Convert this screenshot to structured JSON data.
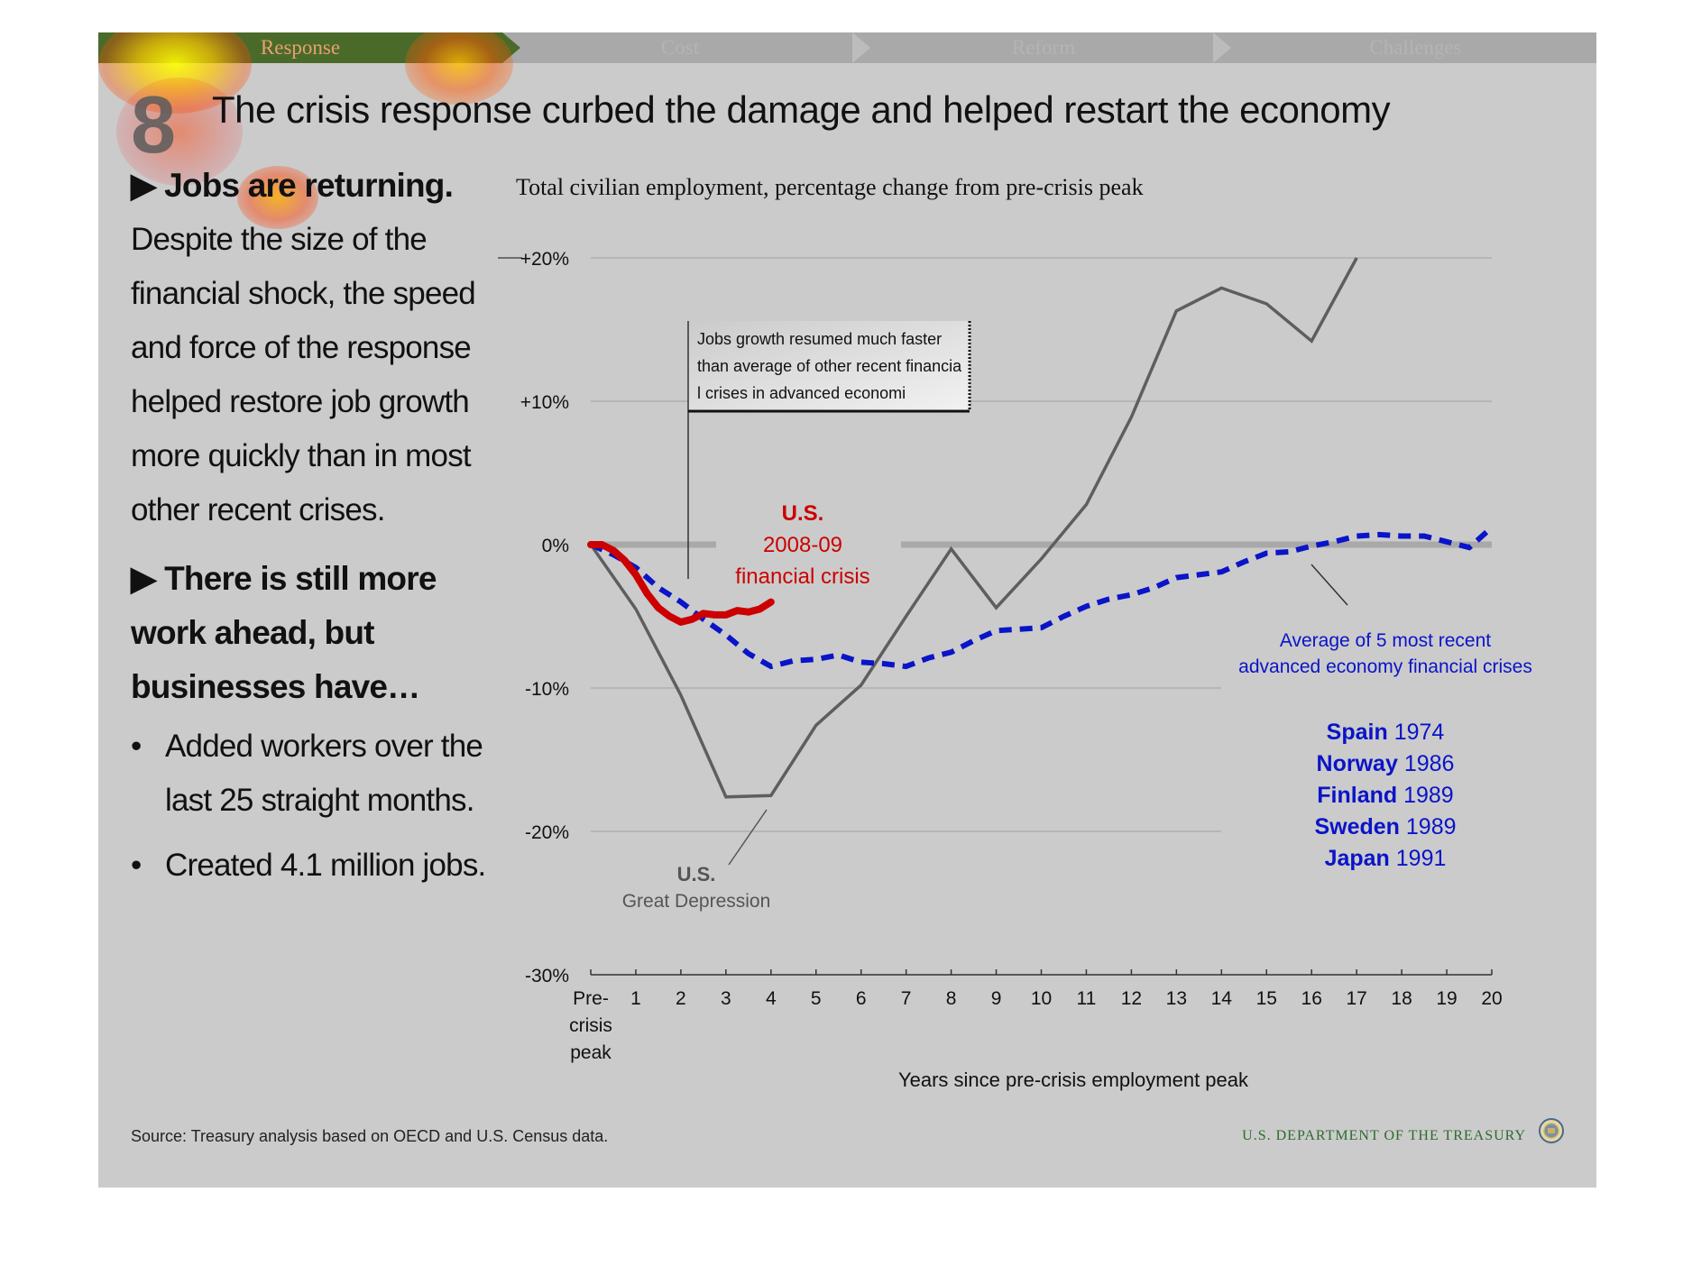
{
  "nav": {
    "tabs": [
      {
        "label": "Response",
        "active": true
      },
      {
        "label": "Cost",
        "active": false
      },
      {
        "label": "Reform",
        "active": false
      },
      {
        "label": "Challenges",
        "active": false
      }
    ]
  },
  "slide": {
    "number": "8",
    "title": "The crisis response curbed the damage and helped restart the economy"
  },
  "left": {
    "heading1": "▶ Jobs are returning.",
    "body1": "Despite the size of the financial shock, the speed and force of the response helped restore job growth more quickly than in most other recent crises.",
    "heading2": "▶ There is still more work ahead, but businesses have…",
    "bullets": [
      "Added workers over the last 25 straight months.",
      "Created 4.1 million jobs."
    ]
  },
  "footer": {
    "source": "Source: Treasury analysis based on OECD and U.S. Census data.",
    "department": "U.S. DEPARTMENT OF THE TREASURY"
  },
  "chart_data": {
    "type": "line",
    "title": "Total civilian employment, percentage change from pre-crisis peak",
    "xlabel": "Years since pre-crisis employment peak",
    "ylabel": "",
    "ylim": [
      -30,
      20
    ],
    "xlim": [
      0,
      20
    ],
    "x_tick_labels": [
      "Pre-crisis peak",
      "1",
      "2",
      "3",
      "4",
      "5",
      "6",
      "7",
      "8",
      "9",
      "10",
      "11",
      "12",
      "13",
      "14",
      "15",
      "16",
      "17",
      "18",
      "19",
      "20"
    ],
    "y_ticks": [
      20,
      10,
      0,
      -10,
      -20,
      -30
    ],
    "y_tick_labels": [
      "+20%",
      "+10%",
      "0%",
      "-10%",
      "-20%",
      "-30%"
    ],
    "grid": true,
    "colors": {
      "great_depression": "#5e5e5e",
      "us_2008": "#cc0000",
      "average": "#0a14c8"
    },
    "series": [
      {
        "name": "U.S. Great Depression",
        "x": [
          0,
          1,
          2,
          3,
          4,
          5,
          6,
          7,
          8,
          9,
          10,
          11,
          12,
          13,
          14,
          15,
          16,
          17
        ],
        "values": [
          0,
          -4.5,
          -10.5,
          -17.6,
          -17.5,
          -12.6,
          -9.8,
          -5.0,
          -0.3,
          -4.4,
          -1.0,
          2.8,
          8.9,
          16.3,
          17.9,
          16.8,
          14.2,
          20.0
        ]
      },
      {
        "name": "U.S. 2008-09 financial crisis",
        "x": [
          0,
          0.25,
          0.5,
          0.75,
          1.0,
          1.25,
          1.5,
          1.75,
          2.0,
          2.25,
          2.5,
          2.75,
          3.0,
          3.25,
          3.5,
          3.75,
          4.0
        ],
        "values": [
          0,
          0,
          -0.4,
          -1.1,
          -2.1,
          -3.4,
          -4.4,
          -5.0,
          -5.4,
          -5.2,
          -4.8,
          -4.9,
          -4.9,
          -4.6,
          -4.7,
          -4.5,
          -4.0
        ]
      },
      {
        "name": "Average of 5 most recent advanced economy financial crises",
        "x": [
          0,
          0.5,
          1,
          1.5,
          2,
          2.5,
          3,
          3.5,
          4,
          4.5,
          5,
          5.5,
          6,
          6.5,
          7,
          7.5,
          8,
          8.5,
          9,
          9.5,
          10,
          10.5,
          11,
          11.5,
          12,
          12.5,
          13,
          13.5,
          14,
          14.5,
          15,
          15.5,
          16,
          16.5,
          17,
          17.5,
          18,
          18.5,
          19,
          19.5,
          20
        ],
        "values": [
          0,
          -0.7,
          -1.6,
          -3.0,
          -4.0,
          -5.2,
          -6.3,
          -7.6,
          -8.5,
          -8.1,
          -8.0,
          -7.7,
          -8.2,
          -8.3,
          -8.5,
          -7.9,
          -7.5,
          -6.7,
          -6.0,
          -5.9,
          -5.8,
          -5.0,
          -4.3,
          -3.8,
          -3.5,
          -3.0,
          -2.3,
          -2.1,
          -1.9,
          -1.2,
          -0.6,
          -0.5,
          -0.1,
          0.2,
          0.6,
          0.7,
          0.6,
          0.6,
          0.2,
          -0.2,
          1.2
        ]
      }
    ],
    "annotations": {
      "callout": "Jobs growth resumed much faster than average of other recent financial crises in advanced economies",
      "us2008_label_1": "U.S.",
      "us2008_label_2": "2008-09",
      "us2008_label_3": "financial crisis",
      "depression_label_1": "U.S.",
      "depression_label_2": "Great Depression",
      "average_label_1": "Average of 5 most recent",
      "average_label_2": "advanced economy financial crises",
      "crises": [
        {
          "country": "Spain",
          "year": "1974"
        },
        {
          "country": "Norway",
          "year": "1986"
        },
        {
          "country": "Finland",
          "year": "1989"
        },
        {
          "country": "Sweden",
          "year": "1989"
        },
        {
          "country": "Japan",
          "year": "1991"
        }
      ]
    }
  }
}
